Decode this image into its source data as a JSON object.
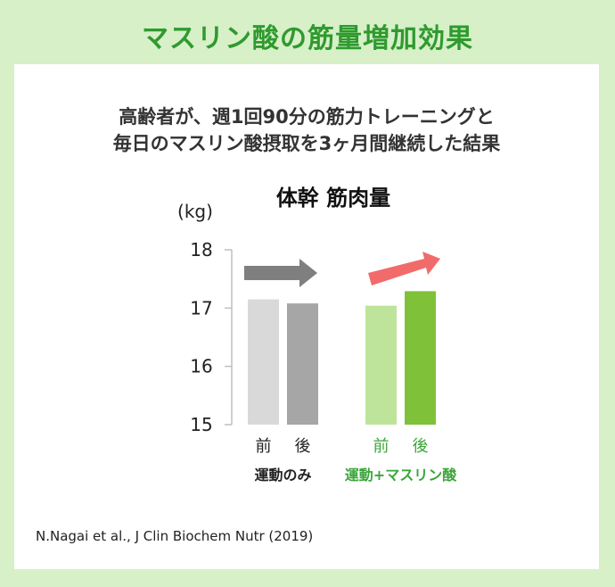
{
  "header": {
    "title": "マスリン酸の筋量増加効果"
  },
  "panel": {
    "subtitle_line1": "高齢者が、週1回90分の筋力トレーニングと",
    "subtitle_line2": "毎日のマスリン酸摂取を3ヶ月間継続した結果",
    "citation": "N.Nagai et al., J Clin Biochem Nutr (2019)"
  },
  "chart_data": {
    "type": "bar",
    "title": "体幹 筋肉量",
    "ylabel": "(kg)",
    "ylim": [
      15,
      18
    ],
    "yticks": [
      18,
      17,
      16,
      15
    ],
    "groups": [
      {
        "label": "運動のみ",
        "label_color": "#222222",
        "bars": [
          {
            "category": "前",
            "value": 17.15,
            "color": "#d9d9d9"
          },
          {
            "category": "後",
            "value": 17.08,
            "color": "#a6a6a6"
          }
        ],
        "category_color": "#222222",
        "arrow": {
          "type": "flat",
          "color": "#7f7f7f"
        }
      },
      {
        "label": "運動+マスリン酸",
        "label_color": "#3aa63a",
        "bars": [
          {
            "category": "前",
            "value": 17.04,
            "color": "#bde49a"
          },
          {
            "category": "後",
            "value": 17.29,
            "color": "#7fc23a"
          }
        ],
        "category_color": "#3aa63a",
        "arrow": {
          "type": "up",
          "color": "#f26b6b"
        }
      }
    ]
  }
}
